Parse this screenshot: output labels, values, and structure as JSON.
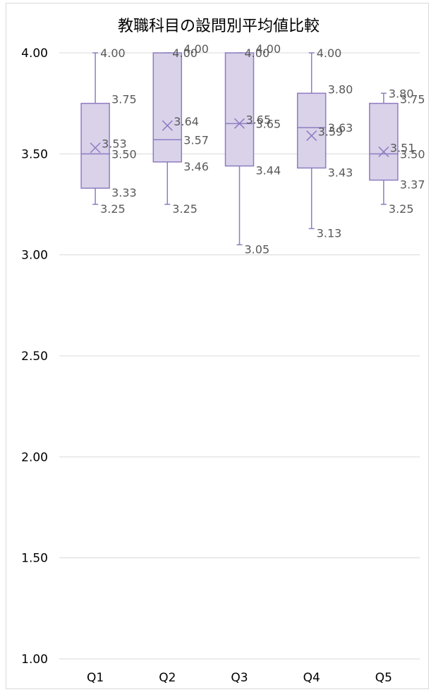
{
  "chart_data": {
    "type": "box",
    "title": "教職科目の設問別平均値比較",
    "xlabel": "",
    "ylabel": "",
    "ylim": [
      1.0,
      4.0
    ],
    "yticks": [
      "1.00",
      "1.50",
      "2.00",
      "2.50",
      "3.00",
      "3.50",
      "4.00"
    ],
    "categories": [
      "Q1",
      "Q2",
      "Q3",
      "Q4",
      "Q5"
    ],
    "grid": true,
    "legend": "none",
    "colors": {
      "box_fill": "#d9d2e9",
      "box_stroke": "#8e7cc3",
      "gridline": "#d9d9d9",
      "label_text": "#595959",
      "axis_text": "#000000"
    },
    "series": [
      {
        "category": "Q1",
        "min": 3.25,
        "q1": 3.33,
        "median": 3.5,
        "q3": 3.75,
        "max": 4.0,
        "mean": 3.53
      },
      {
        "category": "Q2",
        "min": 3.25,
        "q1": 3.46,
        "median": 3.57,
        "q3": 4.0,
        "max": 4.0,
        "mean": 3.64
      },
      {
        "category": "Q3",
        "min": 3.05,
        "q1": 3.44,
        "median": 3.65,
        "q3": 4.0,
        "max": 4.0,
        "mean": 3.65
      },
      {
        "category": "Q4",
        "min": 3.13,
        "q1": 3.43,
        "median": 3.63,
        "q3": 3.8,
        "max": 4.0,
        "mean": 3.59
      },
      {
        "category": "Q5",
        "min": 3.25,
        "q1": 3.37,
        "median": 3.5,
        "q3": 3.75,
        "max": 3.8,
        "mean": 3.51
      }
    ]
  }
}
